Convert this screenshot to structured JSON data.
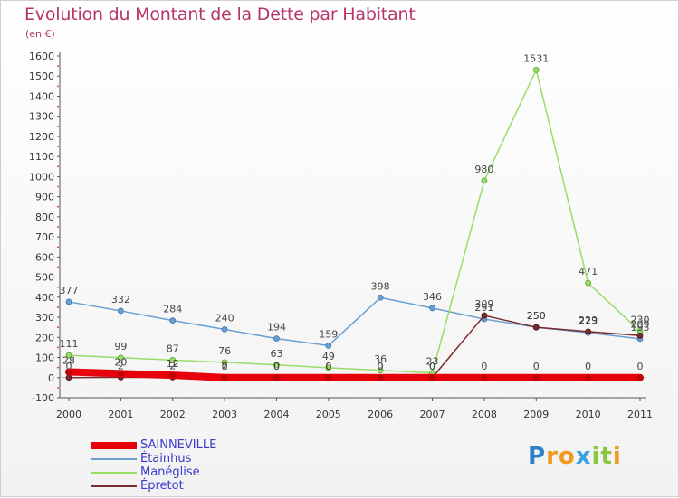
{
  "header": {
    "title": "Evolution du Montant de la Dette par Habitant",
    "unit": "(en €)"
  },
  "logo": {
    "letters": [
      "P",
      "r",
      "o",
      "x",
      "i",
      "t",
      "i"
    ],
    "colors": [
      "#2f7fc8",
      "#f29a1d",
      "#f29a1d",
      "#3aa0e0",
      "#8cc63f",
      "#8cc63f",
      "#f29a1d"
    ]
  },
  "chart_data": {
    "type": "line",
    "x": [
      "2000",
      "2001",
      "2002",
      "2003",
      "2004",
      "2005",
      "2006",
      "2007",
      "2008",
      "2009",
      "2010",
      "2011"
    ],
    "ylim": [
      -100,
      1600
    ],
    "yticks": [
      -100,
      0,
      100,
      200,
      300,
      400,
      500,
      600,
      700,
      800,
      900,
      1000,
      1100,
      1200,
      1300,
      1400,
      1500,
      1600
    ],
    "grid": false,
    "legend_position": "bottom-left",
    "series": [
      {
        "name": "SAINNEVILLE",
        "color": "#e8000b",
        "values": [
          28,
          20,
          12,
          0,
          0,
          0,
          0,
          0,
          0,
          0,
          0,
          0
        ],
        "labels": [
          "28",
          "20",
          "12",
          "0",
          "0",
          "0",
          "0",
          "0",
          "0",
          "0",
          "0",
          "0"
        ]
      },
      {
        "name": "Étainhus",
        "color": "#6a9fd2",
        "values": [
          377,
          332,
          284,
          240,
          194,
          159,
          398,
          346,
          291,
          250,
          223,
          193
        ],
        "labels": [
          "377",
          "332",
          "284",
          "240",
          "194",
          "159",
          "398",
          "346",
          "291",
          "250",
          "223",
          "193"
        ]
      },
      {
        "name": "Manéglise",
        "color": "#99dd66",
        "values": [
          111,
          99,
          87,
          76,
          63,
          49,
          36,
          23,
          980,
          1531,
          471,
          230
        ],
        "labels": [
          "111",
          "99",
          "87",
          "76",
          "63",
          "49",
          "36",
          "23",
          "980",
          "1531",
          "471",
          "230"
        ]
      },
      {
        "name": "Épretot",
        "color": "#7a2b2b",
        "values": [
          0,
          2,
          2,
          2,
          0,
          0,
          0,
          0,
          309,
          250,
          229,
          209
        ],
        "labels": [
          "0",
          "2",
          "2",
          "2",
          "0",
          "0",
          "0",
          "0",
          "309",
          "250",
          "229",
          "209"
        ]
      }
    ]
  }
}
